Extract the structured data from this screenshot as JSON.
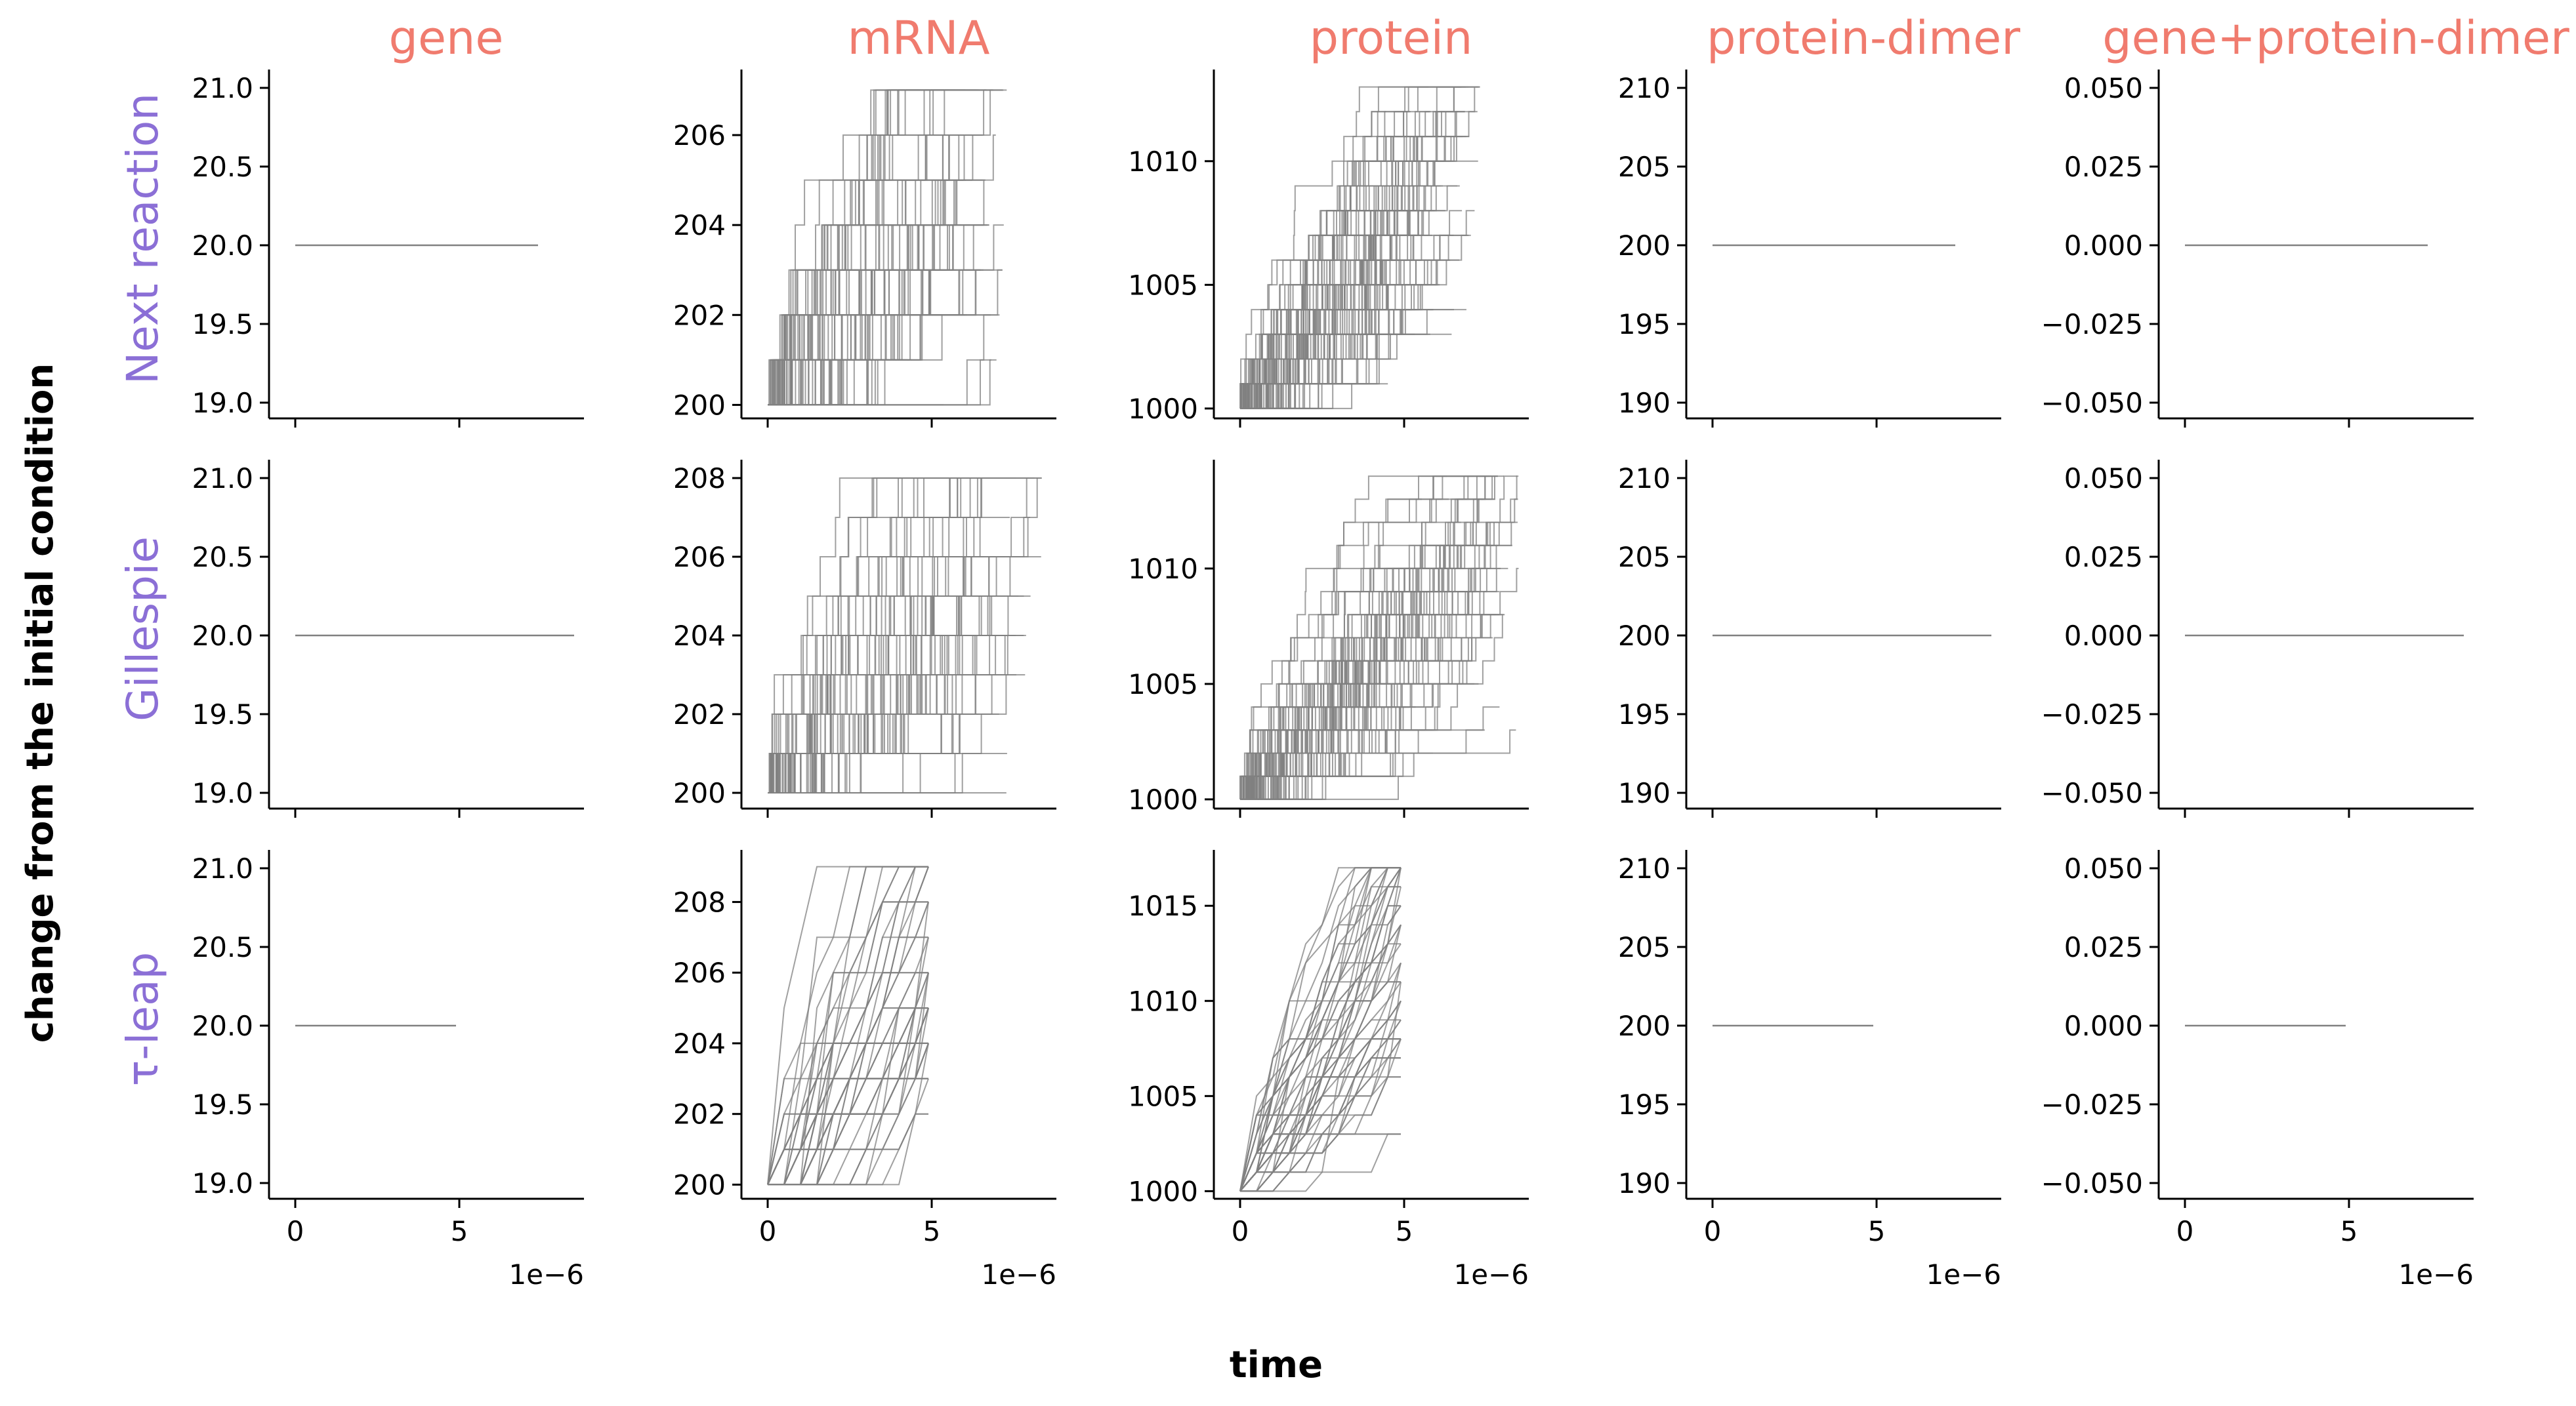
{
  "figure": {
    "xlabel": "time",
    "ylabel": "change from the initial condition",
    "column_title_color": "#f07b6e",
    "row_title_color": "#8b6fd6",
    "trajectory_color": "#808080",
    "columns": [
      "gene",
      "mRNA",
      "protein",
      "protein-dimer",
      "gene+protein-dimer"
    ],
    "rows": [
      "Next reaction",
      "Gillespie",
      "τ-leap"
    ],
    "x_ticks": [
      "0",
      "5"
    ],
    "x_offset_label": "1e−6"
  },
  "chart_data": [
    {
      "type": "line",
      "method": "Next reaction",
      "species": "gene",
      "xlim": [
        -0.8,
        8.8
      ],
      "ylim": [
        18.9,
        21.1
      ],
      "y_ticks": [
        19.0,
        19.5,
        20.0,
        20.5,
        21.0
      ],
      "y_tick_labels": [
        "19.0",
        "19.5",
        "20.0",
        "20.5",
        "21.0"
      ],
      "trajectories": "constant",
      "y0": 20,
      "ymax": 20,
      "tmax": 7.4,
      "n": 1,
      "seed": 11,
      "note_line": "flat"
    },
    {
      "type": "line",
      "method": "Next reaction",
      "species": "mRNA",
      "xlim": [
        -0.8,
        8.8
      ],
      "ylim": [
        199.7,
        207.4
      ],
      "y_ticks": [
        200,
        202,
        204,
        206
      ],
      "y_tick_labels": [
        "200",
        "202",
        "204",
        "206"
      ],
      "trajectories": "step",
      "y0": 200,
      "ymax": 207,
      "tmax": 7.4,
      "n": 80,
      "seed": 21
    },
    {
      "type": "line",
      "method": "Next reaction",
      "species": "protein",
      "xlim": [
        -0.8,
        8.8
      ],
      "ylim": [
        999.6,
        1013.6
      ],
      "y_ticks": [
        1000,
        1005,
        1010
      ],
      "y_tick_labels": [
        "1000",
        "1005",
        "1010"
      ],
      "trajectories": "step",
      "y0": 1000,
      "ymax": 1013,
      "tmax": 7.4,
      "n": 100,
      "seed": 31
    },
    {
      "type": "line",
      "method": "Next reaction",
      "species": "protein-dimer",
      "xlim": [
        -0.8,
        8.8
      ],
      "ylim": [
        189,
        211
      ],
      "y_ticks": [
        190,
        195,
        200,
        205,
        210
      ],
      "y_tick_labels": [
        "190",
        "195",
        "200",
        "205",
        "210"
      ],
      "trajectories": "constant",
      "y0": 200,
      "ymax": 200,
      "tmax": 7.4,
      "n": 1,
      "seed": 41
    },
    {
      "type": "line",
      "method": "Next reaction",
      "species": "gene+protein-dimer",
      "xlim": [
        -0.8,
        8.8
      ],
      "ylim": [
        -0.055,
        0.055
      ],
      "y_ticks": [
        -0.05,
        -0.025,
        0,
        0.025,
        0.05
      ],
      "y_tick_labels": [
        "−0.050",
        "−0.025",
        "0.000",
        "0.025",
        "0.050"
      ],
      "trajectories": "constant",
      "y0": 0,
      "ymax": 0,
      "tmax": 7.4,
      "n": 1,
      "seed": 51
    },
    {
      "type": "line",
      "method": "Gillespie",
      "species": "gene",
      "xlim": [
        -0.8,
        8.8
      ],
      "ylim": [
        18.9,
        21.1
      ],
      "y_ticks": [
        19.0,
        19.5,
        20.0,
        20.5,
        21.0
      ],
      "y_tick_labels": [
        "19.0",
        "19.5",
        "20.0",
        "20.5",
        "21.0"
      ],
      "trajectories": "constant",
      "y0": 20,
      "ymax": 20,
      "tmax": 8.5,
      "n": 1,
      "seed": 12
    },
    {
      "type": "line",
      "method": "Gillespie",
      "species": "mRNA",
      "xlim": [
        -0.8,
        8.8
      ],
      "ylim": [
        199.6,
        208.4
      ],
      "y_ticks": [
        200,
        202,
        204,
        206,
        208
      ],
      "y_tick_labels": [
        "200",
        "202",
        "204",
        "206",
        "208"
      ],
      "trajectories": "step",
      "y0": 200,
      "ymax": 208,
      "tmax": 8.4,
      "n": 80,
      "seed": 22
    },
    {
      "type": "line",
      "method": "Gillespie",
      "species": "protein",
      "xlim": [
        -0.8,
        8.8
      ],
      "ylim": [
        999.6,
        1014.6
      ],
      "y_ticks": [
        1000,
        1005,
        1010
      ],
      "y_tick_labels": [
        "1000",
        "1005",
        "1010"
      ],
      "trajectories": "step",
      "y0": 1000,
      "ymax": 1014,
      "tmax": 8.5,
      "n": 100,
      "seed": 32
    },
    {
      "type": "line",
      "method": "Gillespie",
      "species": "protein-dimer",
      "xlim": [
        -0.8,
        8.8
      ],
      "ylim": [
        189,
        211
      ],
      "y_ticks": [
        190,
        195,
        200,
        205,
        210
      ],
      "y_tick_labels": [
        "190",
        "195",
        "200",
        "205",
        "210"
      ],
      "trajectories": "constant",
      "y0": 200,
      "ymax": 200,
      "tmax": 8.5,
      "n": 1,
      "seed": 42
    },
    {
      "type": "line",
      "method": "Gillespie",
      "species": "gene+protein-dimer",
      "xlim": [
        -0.8,
        8.8
      ],
      "ylim": [
        -0.055,
        0.055
      ],
      "y_ticks": [
        -0.05,
        -0.025,
        0,
        0.025,
        0.05
      ],
      "y_tick_labels": [
        "−0.050",
        "−0.025",
        "0.000",
        "0.025",
        "0.050"
      ],
      "trajectories": "constant",
      "y0": 0,
      "ymax": 0,
      "tmax": 8.5,
      "n": 1,
      "seed": 52
    },
    {
      "type": "line",
      "method": "τ-leap",
      "species": "gene",
      "xlim": [
        -0.8,
        8.8
      ],
      "ylim": [
        18.9,
        21.1
      ],
      "y_ticks": [
        19.0,
        19.5,
        20.0,
        20.5,
        21.0
      ],
      "y_tick_labels": [
        "19.0",
        "19.5",
        "20.0",
        "20.5",
        "21.0"
      ],
      "trajectories": "constant",
      "y0": 20,
      "ymax": 20,
      "tmax": 4.9,
      "n": 1,
      "seed": 13
    },
    {
      "type": "line",
      "method": "τ-leap",
      "species": "mRNA",
      "xlim": [
        -0.8,
        8.8
      ],
      "ylim": [
        199.6,
        209.4
      ],
      "y_ticks": [
        200,
        202,
        204,
        206,
        208
      ],
      "y_tick_labels": [
        "200",
        "202",
        "204",
        "206",
        "208"
      ],
      "trajectories": "leap",
      "y0": 200,
      "ymax": 209,
      "tmax": 4.9,
      "n": 60,
      "seed": 23
    },
    {
      "type": "line",
      "method": "τ-leap",
      "species": "protein",
      "xlim": [
        -0.8,
        8.8
      ],
      "ylim": [
        999.6,
        1017.8
      ],
      "y_ticks": [
        1000,
        1005,
        1010,
        1015
      ],
      "y_tick_labels": [
        "1000",
        "1005",
        "1010",
        "1015"
      ],
      "trajectories": "leap",
      "y0": 1000,
      "ymax": 1017,
      "tmax": 4.9,
      "n": 60,
      "seed": 33
    },
    {
      "type": "line",
      "method": "τ-leap",
      "species": "protein-dimer",
      "xlim": [
        -0.8,
        8.8
      ],
      "ylim": [
        189,
        211
      ],
      "y_ticks": [
        190,
        195,
        200,
        205,
        210
      ],
      "y_tick_labels": [
        "190",
        "195",
        "200",
        "205",
        "210"
      ],
      "trajectories": "constant",
      "y0": 200,
      "ymax": 200,
      "tmax": 4.9,
      "n": 1,
      "seed": 43
    },
    {
      "type": "line",
      "method": "τ-leap",
      "species": "gene+protein-dimer",
      "xlim": [
        -0.8,
        8.8
      ],
      "ylim": [
        -0.055,
        0.055
      ],
      "y_ticks": [
        -0.05,
        -0.025,
        0,
        0.025,
        0.05
      ],
      "y_tick_labels": [
        "−0.050",
        "−0.025",
        "0.000",
        "0.025",
        "0.050"
      ],
      "trajectories": "constant",
      "y0": 0,
      "ymax": 0,
      "tmax": 4.9,
      "n": 1,
      "seed": 53
    }
  ]
}
